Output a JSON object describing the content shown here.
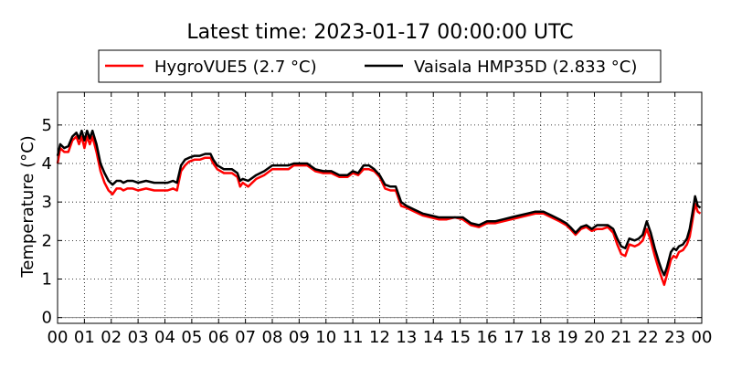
{
  "chart_data": {
    "type": "line",
    "title": "Latest time: 2023-01-17 00:00:00 UTC",
    "xlabel": "",
    "ylabel": "Temperature (°C)",
    "xlim": [
      0,
      24
    ],
    "ylim": [
      -0.15,
      5.85
    ],
    "x_ticks": [
      0,
      1,
      2,
      3,
      4,
      5,
      6,
      7,
      8,
      9,
      10,
      11,
      12,
      13,
      14,
      15,
      16,
      17,
      18,
      19,
      20,
      21,
      22,
      23,
      24
    ],
    "x_tick_labels": [
      "00",
      "01",
      "02",
      "03",
      "04",
      "05",
      "06",
      "07",
      "08",
      "09",
      "10",
      "11",
      "12",
      "13",
      "14",
      "15",
      "16",
      "17",
      "18",
      "19",
      "20",
      "21",
      "22",
      "23",
      "00"
    ],
    "y_ticks": [
      0,
      1,
      2,
      3,
      4,
      5
    ],
    "y_tick_labels": [
      "0",
      "1",
      "2",
      "3",
      "4",
      "5"
    ],
    "grid": true,
    "legend_position": "top-center",
    "series": [
      {
        "name": "HygroVUE5 (2.7 °C)",
        "color": "#ff0000",
        "x": [
          0,
          0.1,
          0.25,
          0.4,
          0.55,
          0.7,
          0.8,
          0.9,
          1.0,
          1.1,
          1.2,
          1.3,
          1.45,
          1.6,
          1.75,
          1.9,
          2.05,
          2.2,
          2.35,
          2.45,
          2.6,
          2.8,
          3.0,
          3.3,
          3.6,
          3.9,
          4.1,
          4.3,
          4.45,
          4.6,
          4.75,
          4.9,
          5.1,
          5.3,
          5.5,
          5.7,
          5.8,
          5.95,
          6.2,
          6.5,
          6.7,
          6.8,
          6.9,
          7.1,
          7.4,
          7.7,
          8.0,
          8.3,
          8.6,
          8.8,
          9.0,
          9.3,
          9.6,
          9.9,
          10.2,
          10.5,
          10.8,
          11.0,
          11.2,
          11.4,
          11.6,
          11.8,
          12.0,
          12.2,
          12.4,
          12.6,
          12.8,
          13.0,
          13.3,
          13.6,
          13.9,
          14.2,
          14.5,
          14.8,
          15.1,
          15.4,
          15.7,
          16.0,
          16.3,
          16.6,
          16.9,
          17.2,
          17.5,
          17.8,
          18.1,
          18.4,
          18.7,
          18.95,
          19.1,
          19.3,
          19.5,
          19.7,
          19.9,
          20.1,
          20.3,
          20.5,
          20.7,
          20.85,
          21.0,
          21.15,
          21.3,
          21.5,
          21.65,
          21.8,
          21.95,
          22.1,
          22.25,
          22.4,
          22.5,
          22.6,
          22.7,
          22.85,
          22.95,
          23.05,
          23.15,
          23.3,
          23.45,
          23.55,
          23.65,
          23.75,
          23.85,
          23.95
        ],
        "y": [
          4.0,
          4.4,
          4.3,
          4.3,
          4.6,
          4.7,
          4.5,
          4.7,
          4.4,
          4.7,
          4.5,
          4.7,
          4.3,
          3.8,
          3.5,
          3.3,
          3.2,
          3.35,
          3.35,
          3.3,
          3.35,
          3.35,
          3.3,
          3.35,
          3.3,
          3.3,
          3.3,
          3.35,
          3.3,
          3.8,
          3.95,
          4.05,
          4.1,
          4.1,
          4.15,
          4.15,
          4.0,
          3.85,
          3.75,
          3.75,
          3.65,
          3.4,
          3.5,
          3.4,
          3.6,
          3.7,
          3.85,
          3.85,
          3.85,
          3.95,
          3.95,
          3.95,
          3.8,
          3.75,
          3.75,
          3.65,
          3.65,
          3.75,
          3.7,
          3.85,
          3.85,
          3.8,
          3.65,
          3.35,
          3.3,
          3.3,
          2.9,
          2.85,
          2.75,
          2.65,
          2.6,
          2.55,
          2.55,
          2.6,
          2.55,
          2.4,
          2.35,
          2.45,
          2.45,
          2.5,
          2.55,
          2.6,
          2.65,
          2.7,
          2.7,
          2.6,
          2.5,
          2.4,
          2.3,
          2.15,
          2.3,
          2.35,
          2.25,
          2.3,
          2.3,
          2.35,
          2.2,
          1.9,
          1.65,
          1.6,
          1.9,
          1.85,
          1.9,
          2.0,
          2.3,
          2.0,
          1.6,
          1.25,
          1.05,
          0.85,
          1.1,
          1.5,
          1.6,
          1.55,
          1.7,
          1.75,
          1.9,
          2.1,
          2.5,
          2.95,
          2.75,
          2.7
        ]
      },
      {
        "name": "Vaisala HMP35D (2.833 °C)",
        "color": "#000000",
        "x": [
          0,
          0.1,
          0.25,
          0.4,
          0.55,
          0.7,
          0.8,
          0.9,
          1.0,
          1.1,
          1.2,
          1.3,
          1.45,
          1.6,
          1.75,
          1.9,
          2.05,
          2.2,
          2.35,
          2.45,
          2.6,
          2.8,
          3.0,
          3.3,
          3.6,
          3.9,
          4.1,
          4.3,
          4.45,
          4.6,
          4.75,
          4.9,
          5.1,
          5.3,
          5.5,
          5.7,
          5.8,
          5.95,
          6.2,
          6.5,
          6.7,
          6.8,
          6.9,
          7.1,
          7.4,
          7.7,
          8.0,
          8.3,
          8.6,
          8.8,
          9.0,
          9.3,
          9.6,
          9.9,
          10.2,
          10.5,
          10.8,
          11.0,
          11.2,
          11.4,
          11.6,
          11.8,
          12.0,
          12.2,
          12.4,
          12.6,
          12.8,
          13.0,
          13.3,
          13.6,
          13.9,
          14.2,
          14.5,
          14.8,
          15.1,
          15.4,
          15.7,
          16.0,
          16.3,
          16.6,
          16.9,
          17.2,
          17.5,
          17.8,
          18.1,
          18.4,
          18.7,
          18.95,
          19.1,
          19.3,
          19.5,
          19.7,
          19.9,
          20.1,
          20.3,
          20.5,
          20.7,
          20.85,
          21.0,
          21.15,
          21.3,
          21.5,
          21.65,
          21.8,
          21.95,
          22.1,
          22.25,
          22.4,
          22.5,
          22.6,
          22.7,
          22.85,
          22.95,
          23.05,
          23.15,
          23.3,
          23.45,
          23.55,
          23.65,
          23.75,
          23.85,
          23.95
        ],
        "y": [
          4.2,
          4.5,
          4.4,
          4.45,
          4.7,
          4.8,
          4.65,
          4.85,
          4.6,
          4.85,
          4.65,
          4.85,
          4.5,
          4.0,
          3.75,
          3.55,
          3.45,
          3.55,
          3.55,
          3.5,
          3.55,
          3.55,
          3.5,
          3.55,
          3.5,
          3.5,
          3.5,
          3.55,
          3.5,
          3.95,
          4.1,
          4.15,
          4.2,
          4.2,
          4.25,
          4.25,
          4.1,
          3.95,
          3.85,
          3.85,
          3.75,
          3.55,
          3.6,
          3.55,
          3.7,
          3.8,
          3.95,
          3.95,
          3.95,
          4.0,
          4.0,
          4.0,
          3.85,
          3.8,
          3.8,
          3.7,
          3.7,
          3.8,
          3.75,
          3.95,
          3.95,
          3.85,
          3.7,
          3.45,
          3.4,
          3.4,
          3.0,
          2.9,
          2.8,
          2.7,
          2.65,
          2.6,
          2.6,
          2.6,
          2.6,
          2.45,
          2.4,
          2.5,
          2.5,
          2.55,
          2.6,
          2.65,
          2.7,
          2.75,
          2.75,
          2.65,
          2.55,
          2.45,
          2.35,
          2.2,
          2.35,
          2.4,
          2.3,
          2.4,
          2.4,
          2.4,
          2.3,
          2.05,
          1.85,
          1.8,
          2.05,
          2.0,
          2.05,
          2.15,
          2.5,
          2.2,
          1.8,
          1.45,
          1.25,
          1.1,
          1.3,
          1.7,
          1.8,
          1.75,
          1.85,
          1.9,
          2.05,
          2.3,
          2.7,
          3.15,
          2.9,
          2.85
        ]
      }
    ]
  }
}
